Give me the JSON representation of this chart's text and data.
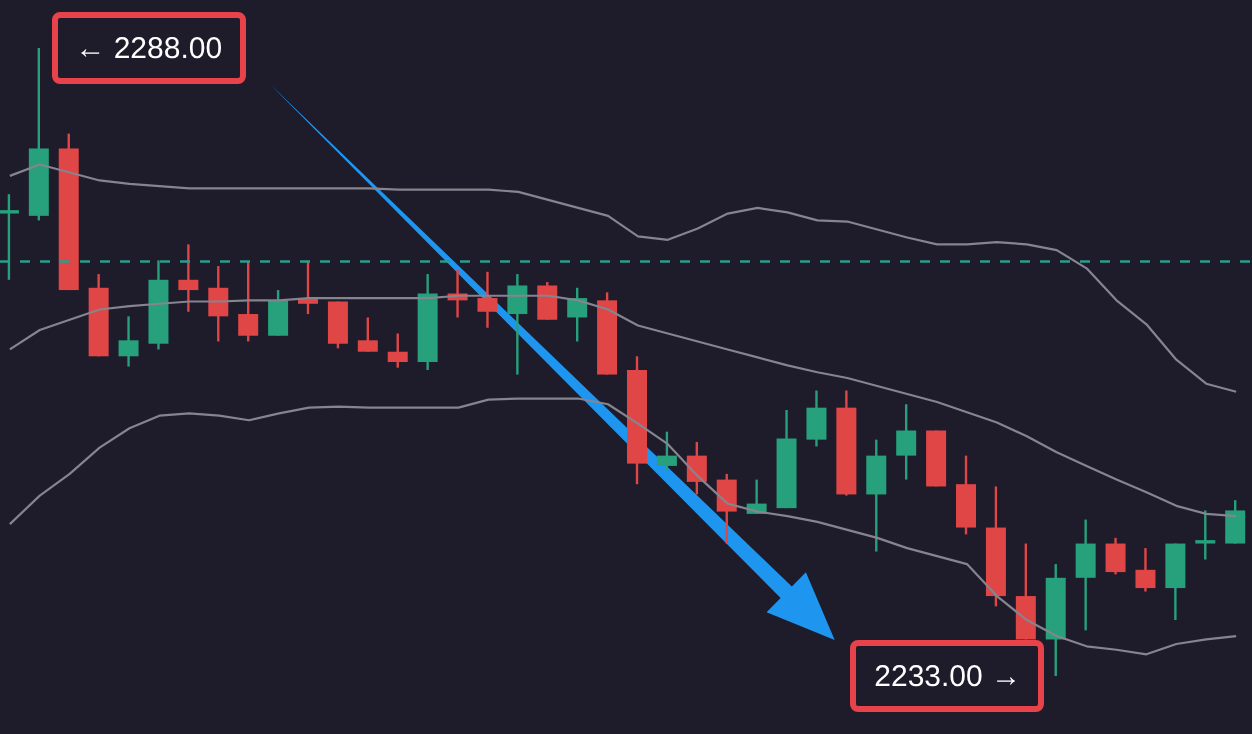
{
  "chart_data": {
    "type": "candlestick",
    "tick_labels": false,
    "categories": [
      null,
      null,
      null,
      null,
      null,
      null,
      null,
      null,
      null,
      null,
      null,
      null,
      null,
      null,
      null,
      null,
      null,
      null,
      null,
      null,
      null,
      null,
      null,
      null,
      null,
      null,
      null,
      null,
      null,
      null,
      null,
      null,
      null,
      null,
      null,
      null,
      null,
      null,
      null,
      null,
      null,
      null
    ],
    "ohlc": [
      [
        2273.5,
        2275.2,
        2267.7,
        2273.8
      ],
      [
        2273.3,
        2288,
        2272.9,
        2279.2
      ],
      [
        2279.2,
        2280.5,
        2266.8,
        2266.8
      ],
      [
        2267.0,
        2268.2,
        2261.0,
        2261.0
      ],
      [
        2261.0,
        2264.5,
        2260.1,
        2262.4
      ],
      [
        2262.1,
        2269.4,
        2261.6,
        2267.7
      ],
      [
        2267.7,
        2270.8,
        2264.9,
        2266.8
      ],
      [
        2267.0,
        2268.9,
        2262.3,
        2264.5
      ],
      [
        2264.7,
        2269.3,
        2262.3,
        2262.8
      ],
      [
        2262.8,
        2266.8,
        2262.8,
        2265.9
      ],
      [
        2266.1,
        2269.3,
        2264.7,
        2265.6
      ],
      [
        2265.8,
        2265.8,
        2261.7,
        2262.1
      ],
      [
        2262.4,
        2264.4,
        2261.4,
        2261.4
      ],
      [
        2261.4,
        2263.0,
        2260.0,
        2260.5
      ],
      [
        2260.5,
        2268.2,
        2259.8,
        2266.5
      ],
      [
        2266.5,
        2268.6,
        2264.4,
        2265.9
      ],
      [
        2266.1,
        2268.4,
        2263.5,
        2264.9
      ],
      [
        2264.7,
        2268.2,
        2259.4,
        2267.2
      ],
      [
        2267.2,
        2267.5,
        2264.2,
        2264.2
      ],
      [
        2264.4,
        2267.0,
        2262.3,
        2266.1
      ],
      [
        2265.9,
        2266.6,
        2259.4,
        2259.4
      ],
      [
        2259.8,
        2261.0,
        2249.8,
        2251.6
      ],
      [
        2251.4,
        2254.4,
        2251.0,
        2252.3
      ],
      [
        2252.3,
        2253.5,
        2248.9,
        2250.0
      ],
      [
        2250.2,
        2250.7,
        2244.6,
        2247.4
      ],
      [
        2247.2,
        2250.2,
        2247.2,
        2248.1
      ],
      [
        2247.7,
        2256.3,
        2247.7,
        2253.8
      ],
      [
        2253.7,
        2258.0,
        2253.1,
        2256.5
      ],
      [
        2256.5,
        2258.0,
        2248.8,
        2248.9
      ],
      [
        2248.9,
        2253.7,
        2243.9,
        2252.3
      ],
      [
        2252.3,
        2256.8,
        2250.2,
        2254.5
      ],
      [
        2254.5,
        2254.5,
        2249.6,
        2249.6
      ],
      [
        2249.8,
        2252.3,
        2245.4,
        2246.0
      ],
      [
        2246.0,
        2249.6,
        2239.1,
        2240.0
      ],
      [
        2240.0,
        2244.6,
        2236.2,
        2236.2
      ],
      [
        2236.2,
        2242.8,
        2233,
        2241.6
      ],
      [
        2241.6,
        2246.7,
        2237.0,
        2244.6
      ],
      [
        2244.6,
        2245.1,
        2241.9,
        2242.1
      ],
      [
        2242.3,
        2244.2,
        2240.4,
        2240.7
      ],
      [
        2240.7,
        2244.6,
        2237.9,
        2244.6
      ],
      [
        2244.6,
        2247.5,
        2243.2,
        2244.9
      ],
      [
        2244.6,
        2248.4,
        2244.6,
        2247.5
      ]
    ],
    "colors": [
      "#26a17b",
      "#26a17b",
      "#e04646",
      "#e04646",
      "#26a17b",
      "#26a17b",
      "#e04646",
      "#e04646",
      "#e04646",
      "#26a17b",
      "#e04646",
      "#e04646",
      "#e04646",
      "#e04646",
      "#26a17b",
      "#e04646",
      "#e04646",
      "#26a17b",
      "#e04646",
      "#26a17b",
      "#e04646",
      "#e04646",
      "#26a17b",
      "#e04646",
      "#e04646",
      "#26a17b",
      "#26a17b",
      "#26a17b",
      "#e04646",
      "#26a17b",
      "#26a17b",
      "#e04646",
      "#e04646",
      "#e04646",
      "#e04646",
      "#26a17b",
      "#26a17b",
      "#e04646",
      "#e04646",
      "#26a17b",
      "#26a17b",
      "#26a17b"
    ],
    "series": [
      {
        "type": "line",
        "color": "#86848f",
        "values": [
          2276.8,
          2277.8,
          2277.1,
          2276.4,
          2276.1,
          2275.9,
          2275.7,
          2275.7,
          2275.7,
          2275.7,
          2275.7,
          2275.7,
          2275.7,
          2275.6,
          2275.6,
          2275.6,
          2275.6,
          2275.4,
          2274.7,
          2274.0,
          2273.3,
          2271.5,
          2271.2,
          2272.2,
          2273.5,
          2274.0,
          2273.6,
          2272.9,
          2272.8,
          2272.1,
          2271.4,
          2270.8,
          2270.8,
          2271.0,
          2270.8,
          2270.3,
          2268.7,
          2265.9,
          2263.8,
          2260.7,
          2258.6,
          2257.9
        ]
      },
      {
        "type": "line",
        "color": "#86848f",
        "values": [
          2261.6,
          2263.3,
          2264.2,
          2265.1,
          2265.4,
          2265.6,
          2265.8,
          2265.8,
          2265.9,
          2265.9,
          2266.1,
          2266.1,
          2266.1,
          2266.1,
          2266.1,
          2266.3,
          2266.3,
          2266.3,
          2266.3,
          2265.9,
          2265.1,
          2263.7,
          2263.0,
          2262.3,
          2261.6,
          2260.9,
          2260.2,
          2259.6,
          2259.1,
          2258.4,
          2257.7,
          2257.0,
          2256.1,
          2255.2,
          2254.0,
          2252.6,
          2251.4,
          2250.2,
          2249.1,
          2247.9,
          2247.2,
          2247.0
        ]
      },
      {
        "type": "line",
        "color": "#86848f",
        "values": [
          2246.3,
          2248.8,
          2250.7,
          2253.0,
          2254.7,
          2255.8,
          2256.0,
          2255.8,
          2255.4,
          2256.0,
          2256.5,
          2256.6,
          2256.5,
          2256.5,
          2256.5,
          2256.5,
          2257.2,
          2257.3,
          2257.3,
          2257.3,
          2256.8,
          2255.1,
          2253.3,
          2250.5,
          2248.1,
          2247.4,
          2247.0,
          2246.5,
          2245.8,
          2245.1,
          2244.2,
          2243.5,
          2242.8,
          2240.0,
          2237.9,
          2236.5,
          2235.6,
          2235.3,
          2234.9,
          2235.8,
          2236.2,
          2236.5
        ]
      }
    ],
    "ref_lines": [
      {
        "axis": "y",
        "value": 2269.3,
        "color": "#2a9d8f",
        "line_style": "dashed"
      }
    ],
    "annotations": [
      "← 2288.00",
      "2233.00 →"
    ]
  }
}
